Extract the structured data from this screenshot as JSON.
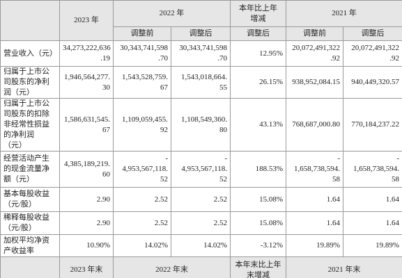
{
  "table": {
    "header": {
      "year_2023": "2023 年",
      "year_2022": "2022 年",
      "change": "本年比上年\n增减",
      "year_2021": "2021 年",
      "sub": [
        "调整前",
        "调整后",
        "调整后",
        "调整前",
        "调整后"
      ]
    },
    "rows": [
      [
        "营业收入（元）",
        "34,273,222,636\n.19",
        "30,343,741,598\n.70",
        "30,343,741,598\n.70",
        "12.95%",
        "20,072,491,322\n.92",
        "20,072,491,322\n.92"
      ],
      [
        "归属于上市公\n司股东的净利\n润（元）",
        "1,946,564,277.\n30",
        "1,543,528,759.\n67",
        "1,543,018,664.\n55",
        "26.15%",
        "938,952,084.15",
        "940,449,320.57"
      ],
      [
        "归属于上市公\n司股东的扣除\n非经常性损益\n的净利润\n（元）",
        "1,586,631,545.\n67",
        "1,109,059,455.\n92",
        "1,108,549,360.\n80",
        "43.13%",
        "768,687,000.80",
        "770,184,237.22"
      ],
      [
        "经营活动产生\n的现金流量净\n额（元）",
        "4,385,189,219.\n60",
        "-\n4,953,567,118.\n52",
        "-\n4,953,567,118.\n52",
        "188.53%",
        "-\n1,658,738,594.\n58",
        "-\n1,658,738,594.\n58"
      ],
      [
        "基本每股收益\n（元/股）",
        "2.90",
        "2.52",
        "2.52",
        "15.08%",
        "1.64",
        "1.64"
      ],
      [
        "稀释每股收益\n（元/股）",
        "2.90",
        "2.52",
        "2.52",
        "15.08%",
        "1.64",
        "1.64"
      ],
      [
        "加权平均净资\n产收益率",
        "10.90%",
        "14.02%",
        "14.02%",
        "-3.12%",
        "19.89%",
        "19.89%"
      ]
    ],
    "footer_header": {
      "year_2023": "2023 年末",
      "year_2022": "2022 年末",
      "change": "本年末比上年\n末增减",
      "year_2021": "2021 年末"
    }
  }
}
